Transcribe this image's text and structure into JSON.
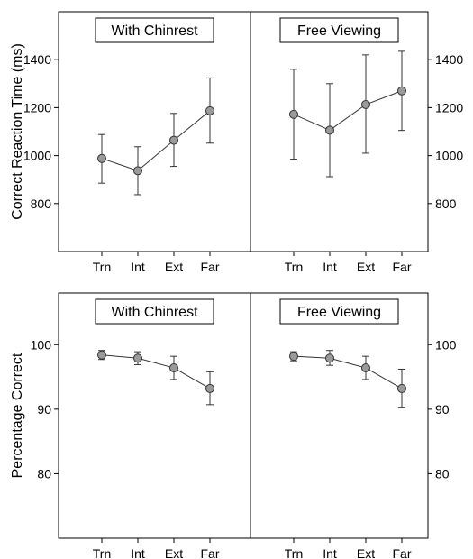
{
  "chart_data": [
    {
      "type": "line",
      "title": "With Chinrest",
      "ylabel": "Correct Reaction Time (ms)",
      "categories": [
        "Trn",
        "Int",
        "Ext",
        "Far"
      ],
      "ylim": [
        600,
        1600
      ],
      "yticks": [
        800,
        1000,
        1200,
        1400
      ],
      "values": [
        988,
        937,
        1064,
        1187
      ],
      "err_low": [
        885,
        837,
        955,
        1052
      ],
      "err_high": [
        1088,
        1037,
        1176,
        1324
      ]
    },
    {
      "type": "line",
      "title": "Free Viewing",
      "ylabel": "",
      "categories": [
        "Trn",
        "Int",
        "Ext",
        "Far"
      ],
      "ylim": [
        600,
        1600
      ],
      "yticks": [
        800,
        1000,
        1200,
        1400
      ],
      "values": [
        1172,
        1106,
        1213,
        1270
      ],
      "err_low": [
        985,
        912,
        1010,
        1105
      ],
      "err_high": [
        1360,
        1300,
        1420,
        1435
      ]
    },
    {
      "type": "line",
      "title": "With Chinrest",
      "ylabel": "Percentage Correct",
      "categories": [
        "Trn",
        "Int",
        "Ext",
        "Far"
      ],
      "ylim": [
        70,
        108
      ],
      "yticks": [
        80,
        90,
        100
      ],
      "values": [
        98.4,
        97.9,
        96.4,
        93.2
      ],
      "err_low": [
        97.7,
        96.9,
        94.6,
        90.7
      ],
      "err_high": [
        99.1,
        98.9,
        98.2,
        95.8
      ]
    },
    {
      "type": "line",
      "title": "Free Viewing",
      "ylabel": "",
      "categories": [
        "Trn",
        "Int",
        "Ext",
        "Far"
      ],
      "ylim": [
        70,
        108
      ],
      "yticks": [
        80,
        90,
        100
      ],
      "values": [
        98.2,
        97.9,
        96.4,
        93.2
      ],
      "err_low": [
        97.5,
        96.8,
        94.6,
        90.3
      ],
      "err_high": [
        98.9,
        99.1,
        98.2,
        96.2
      ]
    }
  ]
}
